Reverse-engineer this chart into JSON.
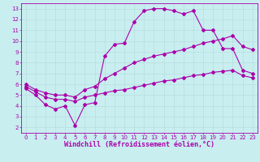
{
  "bg_color": "#c8eef0",
  "grid_color": "#b8dde0",
  "line_color": "#aa00aa",
  "xlim": [
    -0.5,
    23.5
  ],
  "ylim": [
    1.5,
    13.5
  ],
  "xticks": [
    0,
    1,
    2,
    3,
    4,
    5,
    6,
    7,
    8,
    9,
    10,
    11,
    12,
    13,
    14,
    15,
    16,
    17,
    18,
    19,
    20,
    21,
    22,
    23
  ],
  "yticks": [
    2,
    3,
    4,
    5,
    6,
    7,
    8,
    9,
    10,
    11,
    12,
    13
  ],
  "line1_x": [
    0,
    1,
    2,
    3,
    4,
    5,
    6,
    7,
    8,
    9,
    10,
    11,
    12,
    13,
    14,
    15,
    16,
    17,
    18,
    19,
    20,
    21,
    22,
    23
  ],
  "line1_y": [
    5.6,
    5.0,
    4.1,
    3.7,
    4.0,
    2.2,
    4.1,
    4.3,
    8.6,
    9.7,
    9.8,
    11.8,
    12.8,
    13.0,
    13.0,
    12.8,
    12.5,
    12.8,
    11.0,
    11.0,
    9.3,
    9.3,
    7.3,
    7.0
  ],
  "line2_x": [
    0,
    1,
    2,
    3,
    4,
    5,
    6,
    7,
    8,
    9,
    10,
    11,
    12,
    13,
    14,
    15,
    16,
    17,
    18,
    19,
    20,
    21,
    22,
    23
  ],
  "line2_y": [
    5.8,
    5.3,
    4.8,
    4.6,
    4.6,
    4.4,
    4.8,
    5.0,
    5.2,
    5.4,
    5.5,
    5.7,
    5.9,
    6.1,
    6.3,
    6.4,
    6.6,
    6.8,
    6.9,
    7.1,
    7.2,
    7.3,
    6.8,
    6.6
  ],
  "line3_x": [
    0,
    1,
    2,
    3,
    4,
    5,
    6,
    7,
    8,
    9,
    10,
    11,
    12,
    13,
    14,
    15,
    16,
    17,
    18,
    19,
    20,
    21,
    22,
    23
  ],
  "line3_y": [
    6.0,
    5.5,
    5.2,
    5.0,
    5.0,
    4.8,
    5.5,
    5.8,
    6.5,
    7.0,
    7.5,
    8.0,
    8.3,
    8.6,
    8.8,
    9.0,
    9.2,
    9.5,
    9.8,
    10.0,
    10.2,
    10.5,
    9.5,
    9.2
  ],
  "xlabel": "Windchill (Refroidissement éolien,°C)",
  "marker": "D",
  "markersize": 2.0,
  "linewidth": 0.8,
  "tick_fontsize": 5.0,
  "xlabel_fontsize": 6.0
}
